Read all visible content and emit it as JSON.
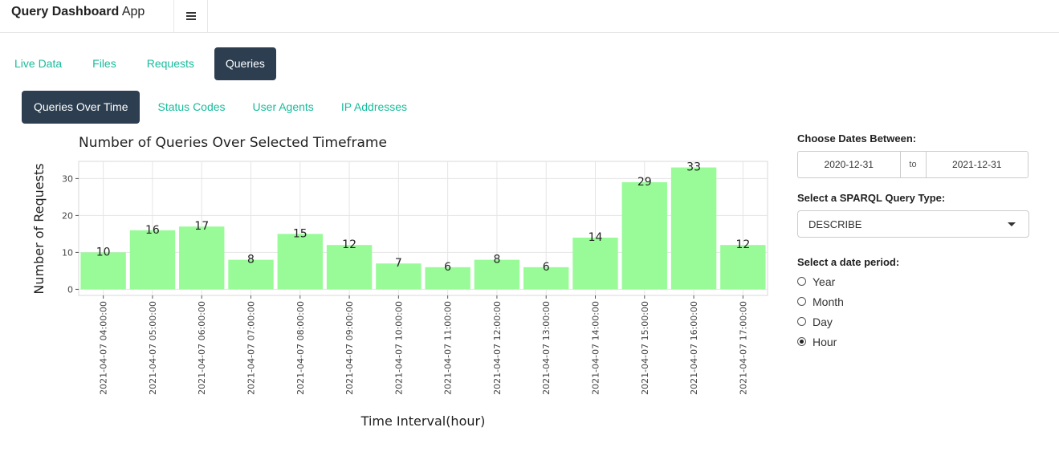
{
  "app": {
    "title_bold": "Query Dashboard",
    "title_rest": "App"
  },
  "main_tabs": [
    {
      "label": "Live Data",
      "active": false
    },
    {
      "label": "Files",
      "active": false
    },
    {
      "label": "Requests",
      "active": false
    },
    {
      "label": "Queries",
      "active": true
    }
  ],
  "sub_tabs": [
    {
      "label": "Queries Over Time",
      "active": true
    },
    {
      "label": "Status Codes",
      "active": false
    },
    {
      "label": "User Agents",
      "active": false
    },
    {
      "label": "IP Addresses",
      "active": false
    }
  ],
  "sidebar": {
    "dates_label": "Choose Dates Between:",
    "date_start": "2020-12-31",
    "date_sep": "to",
    "date_end": "2021-12-31",
    "query_type_label": "Select a SPARQL Query Type:",
    "query_type_value": "DESCRIBE",
    "period_label": "Select a date period:",
    "periods": [
      {
        "label": "Year",
        "checked": false
      },
      {
        "label": "Month",
        "checked": false
      },
      {
        "label": "Day",
        "checked": false
      },
      {
        "label": "Hour",
        "checked": true
      }
    ]
  },
  "chart_data": {
    "type": "bar",
    "title": "Number of Queries Over Selected Timeframe",
    "xlabel": "Time Interval(hour)",
    "ylabel": "Number of Requests",
    "categories": [
      "2021-04-07 04:00:00",
      "2021-04-07 05:00:00",
      "2021-04-07 06:00:00",
      "2021-04-07 07:00:00",
      "2021-04-07 08:00:00",
      "2021-04-07 09:00:00",
      "2021-04-07 10:00:00",
      "2021-04-07 11:00:00",
      "2021-04-07 12:00:00",
      "2021-04-07 13:00:00",
      "2021-04-07 14:00:00",
      "2021-04-07 15:00:00",
      "2021-04-07 16:00:00",
      "2021-04-07 17:00:00"
    ],
    "values": [
      10,
      16,
      17,
      8,
      15,
      12,
      7,
      6,
      8,
      6,
      14,
      29,
      33,
      12
    ],
    "yticks": [
      0,
      10,
      20,
      30
    ],
    "ylim": [
      -1.65,
      34.65
    ],
    "grid": true,
    "bar_color": "#98fb98"
  }
}
